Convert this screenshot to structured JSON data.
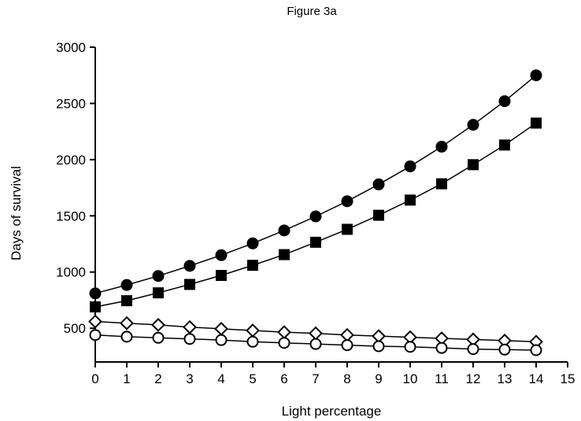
{
  "chart_data": {
    "type": "line",
    "title": "Figure 3a",
    "xlabel": "Light percentage",
    "ylabel": "Days of survival",
    "xlim": [
      0,
      15
    ],
    "ylim": [
      200,
      3000
    ],
    "x_ticks": [
      "0",
      "1",
      "2",
      "3",
      "4",
      "5",
      "6",
      "7",
      "8",
      "9",
      "10",
      "11",
      "12",
      "13",
      "14",
      "15"
    ],
    "y_ticks": [
      "500",
      "1000",
      "1500",
      "2000",
      "2500",
      "3000"
    ],
    "grid": false,
    "x": [
      0,
      1,
      2,
      3,
      4,
      5,
      6,
      7,
      8,
      9,
      10,
      11,
      12,
      13,
      14
    ],
    "series": [
      {
        "marker": "filled-circle",
        "values": [
          810,
          885,
          965,
          1055,
          1150,
          1255,
          1370,
          1495,
          1630,
          1780,
          1940,
          2115,
          2310,
          2520,
          2750
        ]
      },
      {
        "marker": "filled-square",
        "values": [
          690,
          745,
          815,
          890,
          970,
          1060,
          1155,
          1265,
          1380,
          1505,
          1640,
          1785,
          1955,
          2130,
          2325
        ]
      },
      {
        "marker": "open-diamond",
        "values": [
          560,
          545,
          530,
          510,
          495,
          480,
          465,
          455,
          440,
          430,
          420,
          410,
          400,
          390,
          380
        ]
      },
      {
        "marker": "open-circle",
        "values": [
          440,
          425,
          415,
          405,
          395,
          380,
          370,
          360,
          350,
          340,
          335,
          325,
          315,
          310,
          305
        ]
      }
    ]
  }
}
